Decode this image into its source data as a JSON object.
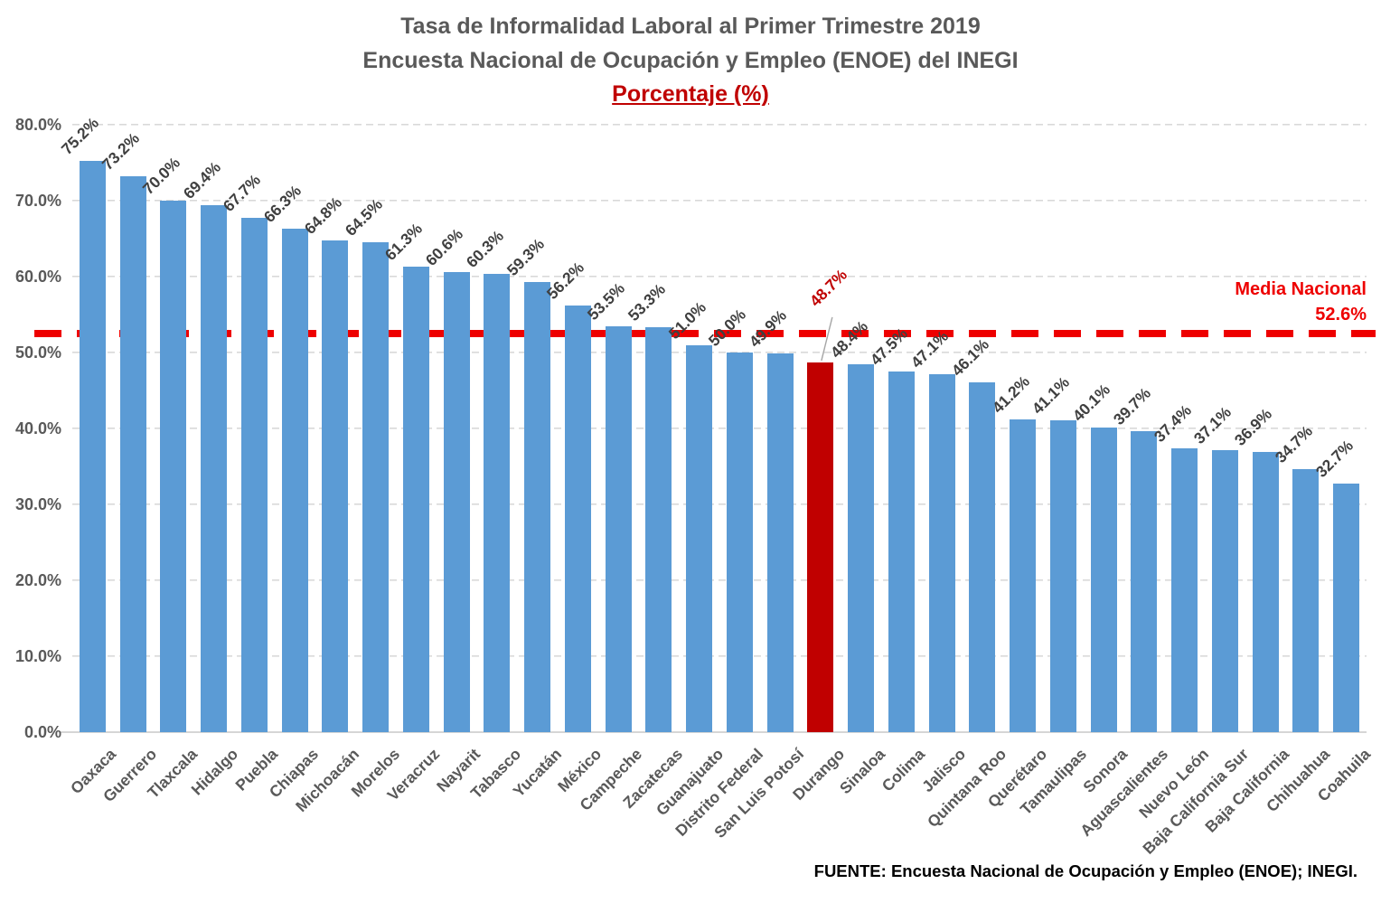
{
  "chart_data": {
    "type": "bar",
    "title": "Tasa de Informalidad Laboral al Primer Trimestre 2019",
    "subtitle": "Encuesta Nacional de Ocupación y Empleo (ENOE) del INEGI",
    "unit_label": "Porcentaje (%)",
    "categories": [
      "Oaxaca",
      "Guerrero",
      "Tlaxcala",
      "Hidalgo",
      "Puebla",
      "Chiapas",
      "Michoacán",
      "Morelos",
      "Veracruz",
      "Nayarit",
      "Tabasco",
      "Yucatán",
      "México",
      "Campeche",
      "Zacatecas",
      "Guanajuato",
      "Distrito Federal",
      "San Luis Potosí",
      "Durango",
      "Sinaloa",
      "Colima",
      "Jalisco",
      "Quintana Roo",
      "Querétaro",
      "Tamaulipas",
      "Sonora",
      "Aguascalientes",
      "Nuevo León",
      "Baja California Sur",
      "Baja California",
      "Chihuahua",
      "Coahuila"
    ],
    "values": [
      75.2,
      73.2,
      70.0,
      69.4,
      67.7,
      66.3,
      64.8,
      64.5,
      61.3,
      60.6,
      60.3,
      59.3,
      56.2,
      53.5,
      53.3,
      51.0,
      50.0,
      49.9,
      48.7,
      48.4,
      47.5,
      47.1,
      46.1,
      41.2,
      41.1,
      40.1,
      39.7,
      37.4,
      37.1,
      36.9,
      34.7,
      32.7
    ],
    "value_labels": [
      "75.2%",
      "73.2%",
      "70.0%",
      "69.4%",
      "67.7%",
      "66.3%",
      "64.8%",
      "64.5%",
      "61.3%",
      "60.6%",
      "60.3%",
      "59.3%",
      "56.2%",
      "53.5%",
      "53.3%",
      "51.0%",
      "50.0%",
      "49.9%",
      "48.7%",
      "48.4%",
      "47.5%",
      "47.1%",
      "46.1%",
      "41.2%",
      "41.1%",
      "40.1%",
      "39.7%",
      "37.4%",
      "37.1%",
      "36.9%",
      "34.7%",
      "32.7%"
    ],
    "highlight": {
      "category": "Durango",
      "index": 18,
      "bar_color": "#C00000",
      "label_color": "#C00000"
    },
    "bar_color": "#5B9BD5",
    "mean_line": {
      "label": "Media Nacional",
      "value_label": "52.6%",
      "value": 52.6,
      "color": "#ee0000",
      "style": "dashed"
    },
    "y_axis": {
      "min": 0,
      "max": 80,
      "tick_step": 10,
      "tick_labels": [
        "0.0%",
        "10.0%",
        "20.0%",
        "30.0%",
        "40.0%",
        "50.0%",
        "60.0%",
        "70.0%",
        "80.0%"
      ]
    },
    "grid": "horizontal-dashed",
    "legend": "none",
    "source": "FUENTE: Encuesta Nacional de Ocupación y Empleo (ENOE); INEGI."
  }
}
